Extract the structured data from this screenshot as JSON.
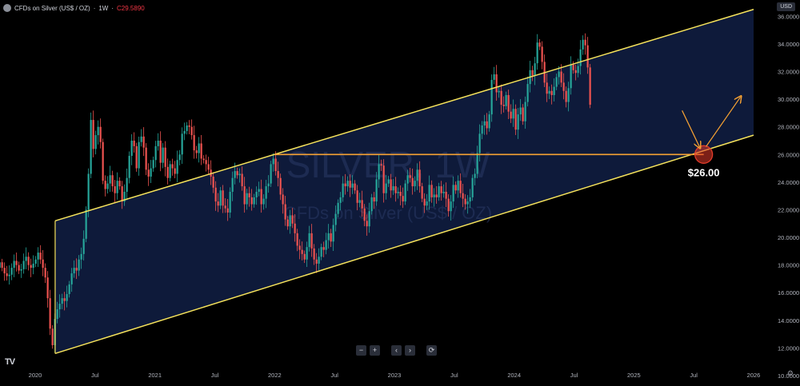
{
  "header": {
    "symbol": "CFDs on Silver (US$ / OZ)",
    "interval": "1W",
    "last_price": "C29.5890",
    "currency_badge": "USD"
  },
  "watermark": {
    "line1": "SILVER, 1W",
    "line2": "CFDs on Silver (US$ / OZ)"
  },
  "chart_data": {
    "type": "candlestick",
    "x_axis_labels": [
      "2020",
      "Jul",
      "2021",
      "Jul",
      "2022",
      "Jul",
      "2023",
      "Jul",
      "2024",
      "Jul",
      "2025",
      "Jul",
      "2026"
    ],
    "x_range": [
      "2019-08",
      "2026-01"
    ],
    "y_ticks": [
      "36.0000",
      "34.0000",
      "32.0000",
      "30.0000",
      "28.0000",
      "26.0000",
      "24.0000",
      "22.0000",
      "20.0000",
      "18.0000",
      "16.0000",
      "14.0000",
      "12.0000",
      "10.0000"
    ],
    "ylim": [
      10,
      36.6
    ],
    "weekly_closes_approx": [
      18.2,
      18.0,
      17.8,
      17.6,
      17.4,
      17.8,
      18.2,
      17.8,
      17.4,
      17.2,
      17.3,
      17.8,
      18.3,
      18.0,
      17.6,
      17.7,
      18.3,
      18.6,
      18.0,
      17.8,
      18.1,
      18.4,
      18.9,
      18.4,
      17.8,
      17.1,
      15.6,
      13.4,
      12.2,
      14.1,
      14.8,
      15.2,
      15.6,
      15.4,
      15.9,
      16.6,
      17.4,
      17.8,
      17.6,
      18.4,
      18.8,
      19.9,
      22.0,
      24.6,
      28.5,
      26.4,
      27.4,
      28.0,
      26.9,
      24.1,
      23.5,
      23.9,
      24.5,
      23.7,
      23.2,
      24.1,
      23.7,
      22.6,
      23.3,
      24.3,
      25.9,
      27.0,
      26.6,
      25.0,
      26.9,
      27.3,
      26.5,
      24.9,
      24.4,
      25.0,
      25.6,
      26.6,
      27.0,
      25.4,
      26.5,
      25.1,
      24.3,
      25.3,
      25.0,
      24.6,
      25.6,
      26.0,
      27.5,
      27.7,
      28.1,
      28.0,
      27.4,
      26.3,
      26.1,
      26.8,
      25.7,
      25.6,
      25.3,
      24.9,
      24.4,
      23.6,
      22.6,
      22.3,
      23.4,
      22.3,
      22.1,
      21.8,
      23.3,
      24.3,
      24.8,
      24.5,
      24.6,
      23.7,
      22.4,
      23.2,
      22.9,
      22.4,
      22.9,
      23.3,
      23.5,
      22.4,
      22.8,
      23.7,
      23.9,
      25.3,
      25.7,
      24.8,
      24.3,
      23.1,
      22.4,
      21.3,
      20.8,
      21.6,
      21.0,
      20.3,
      19.4,
      19.1,
      18.8,
      18.4,
      19.3,
      20.3,
      19.2,
      18.4,
      18.1,
      18.6,
      19.3,
      19.1,
      19.8,
      20.3,
      19.7,
      20.9,
      21.7,
      22.5,
      22.9,
      23.9,
      23.7,
      24.1,
      23.6,
      23.9,
      23.4,
      22.5,
      22.7,
      22.1,
      21.2,
      20.8,
      21.9,
      22.9,
      22.6,
      24.2,
      25.3,
      25.2,
      23.2,
      23.9,
      24.2,
      23.4,
      23.7,
      23.2,
      23.3,
      23.0,
      22.6,
      23.9,
      24.5,
      24.3,
      23.7,
      24.1,
      24.9,
      23.7,
      22.8,
      22.3,
      22.6,
      23.8,
      22.9,
      23.1,
      22.9,
      23.7,
      23.2,
      23.3,
      22.8,
      21.9,
      22.6,
      23.8,
      23.4,
      24.1,
      23.2,
      22.8,
      22.4,
      22.6,
      22.9,
      24.3,
      24.6,
      26.1,
      27.5,
      28.1,
      28.4,
      27.9,
      28.9,
      31.4,
      31.8,
      30.5,
      30.6,
      29.6,
      29.5,
      30.3,
      29.1,
      28.6,
      29.3,
      27.8,
      28.9,
      29.4,
      28.4,
      29.8,
      31.1,
      32.1,
      31.7,
      32.6,
      34.1,
      33.8,
      32.7,
      31.2,
      30.4,
      30.6,
      30.3,
      30.9,
      31.6,
      32.0,
      31.2,
      30.6,
      29.8,
      30.8,
      32.5,
      32.1,
      31.9,
      32.4,
      33.6,
      34.3,
      33.9,
      32.3,
      29.6
    ],
    "channel": {
      "upper_line": {
        "start": [
          "2020-03",
          21.2
        ],
        "end": [
          "2026-01",
          36.5
        ]
      },
      "lower_line": {
        "start": [
          "2020-03",
          11.6
        ],
        "end": [
          "2026-01",
          27.4
        ]
      },
      "fill_color": "#0f1b3d",
      "line_color": "#f5e25b"
    },
    "horizontal_level": {
      "value": 26.0,
      "label": "$26.00",
      "from": "2022-01",
      "color": "#f7a233"
    },
    "target_marker": {
      "value": 26.0,
      "date": "2025-08",
      "color": "#e23b2a"
    },
    "projection_arrows": {
      "color": "#f7a233"
    },
    "colors": {
      "up": "#26a69a",
      "down": "#ef5350"
    }
  },
  "controls": {
    "zoom_out": "−",
    "zoom_in": "+",
    "scroll_left": "‹",
    "scroll_right": "›",
    "reset": "⟳"
  },
  "footer": {
    "tv_logo": "TV",
    "settings_icon": "gear-icon"
  }
}
